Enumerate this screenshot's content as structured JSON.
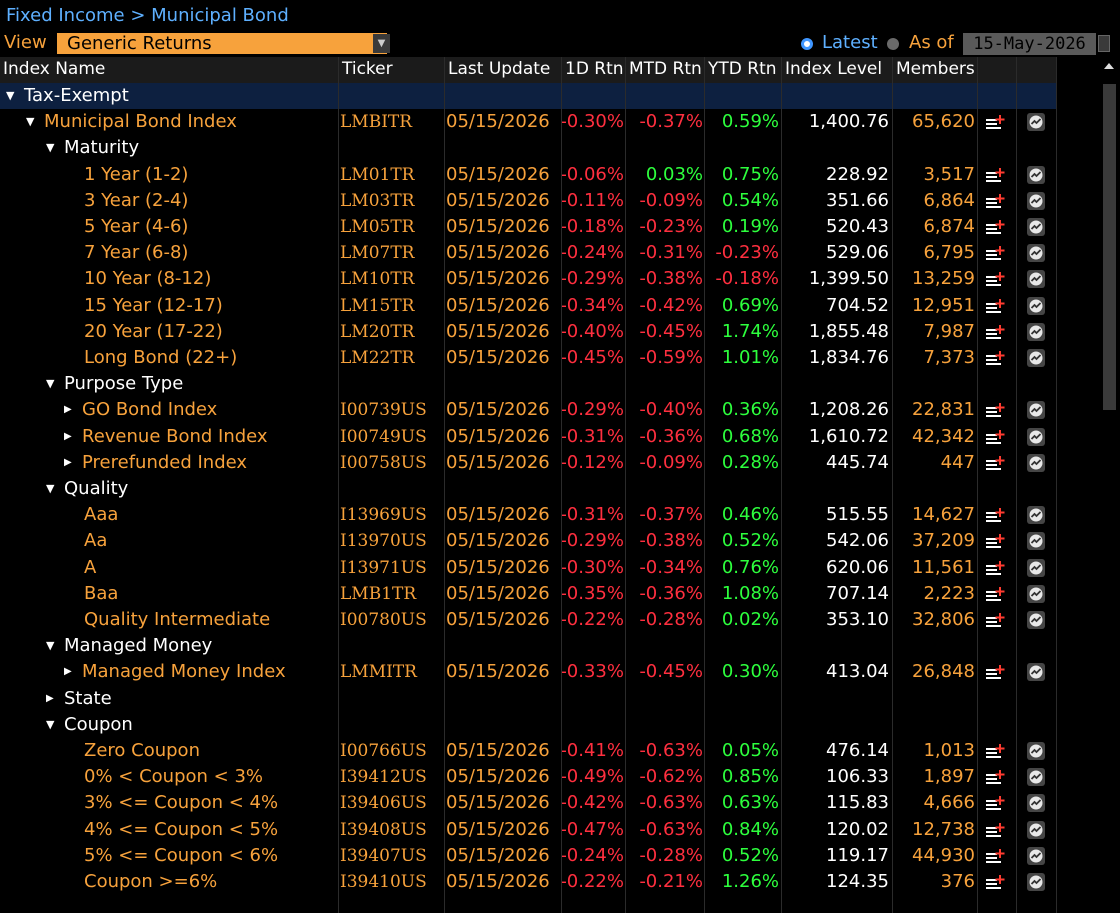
{
  "breadcrumb": "Fixed Income > Municipal Bond",
  "view": {
    "label": "View",
    "value": "Generic Returns"
  },
  "mode": {
    "latest": "Latest",
    "as_of": "As of",
    "date": "15-May-2026",
    "selected": "Latest"
  },
  "columns": [
    "Index Name",
    "Ticker",
    "Last Update",
    "1D Rtn",
    "MTD Rtn",
    "YTD Rtn",
    "Index Level",
    "Members"
  ],
  "colors": {
    "accent": "#f7a23c",
    "link": "#5eb0ff",
    "negative": "#ff2f3f",
    "positive": "#2dff3d"
  },
  "icons": {
    "add": "add-to-list-icon",
    "graph": "graph-icon",
    "expanded": "triangle-down-icon",
    "collapsed": "triangle-right-icon"
  },
  "rows": [
    {
      "kind": "group",
      "depth": 0,
      "expand": "down",
      "name": "Tax-Exempt"
    },
    {
      "kind": "data",
      "depth": 1,
      "expand": "down",
      "name": "Municipal Bond Index",
      "ticker": "LMBITR",
      "update": "05/15/2026",
      "d1": "-0.30%",
      "mtd": "-0.37%",
      "ytd": "0.59%",
      "level": "1,400.76",
      "members": "65,620"
    },
    {
      "kind": "category",
      "depth": 2,
      "expand": "down",
      "name": "Maturity"
    },
    {
      "kind": "data",
      "depth": 3,
      "name": "1 Year (1-2)",
      "ticker": "LM01TR",
      "update": "05/15/2026",
      "d1": "-0.06%",
      "mtd": "0.03%",
      "ytd": "0.75%",
      "level": "228.92",
      "members": "3,517"
    },
    {
      "kind": "data",
      "depth": 3,
      "name": "3 Year (2-4)",
      "ticker": "LM03TR",
      "update": "05/15/2026",
      "d1": "-0.11%",
      "mtd": "-0.09%",
      "ytd": "0.54%",
      "level": "351.66",
      "members": "6,864"
    },
    {
      "kind": "data",
      "depth": 3,
      "name": "5 Year (4-6)",
      "ticker": "LM05TR",
      "update": "05/15/2026",
      "d1": "-0.18%",
      "mtd": "-0.23%",
      "ytd": "0.19%",
      "level": "520.43",
      "members": "6,874"
    },
    {
      "kind": "data",
      "depth": 3,
      "name": "7 Year (6-8)",
      "ticker": "LM07TR",
      "update": "05/15/2026",
      "d1": "-0.24%",
      "mtd": "-0.31%",
      "ytd": "-0.23%",
      "level": "529.06",
      "members": "6,795"
    },
    {
      "kind": "data",
      "depth": 3,
      "name": "10 Year (8-12)",
      "ticker": "LM10TR",
      "update": "05/15/2026",
      "d1": "-0.29%",
      "mtd": "-0.38%",
      "ytd": "-0.18%",
      "level": "1,399.50",
      "members": "13,259"
    },
    {
      "kind": "data",
      "depth": 3,
      "name": "15 Year (12-17)",
      "ticker": "LM15TR",
      "update": "05/15/2026",
      "d1": "-0.34%",
      "mtd": "-0.42%",
      "ytd": "0.69%",
      "level": "704.52",
      "members": "12,951"
    },
    {
      "kind": "data",
      "depth": 3,
      "name": "20 Year (17-22)",
      "ticker": "LM20TR",
      "update": "05/15/2026",
      "d1": "-0.40%",
      "mtd": "-0.45%",
      "ytd": "1.74%",
      "level": "1,855.48",
      "members": "7,987"
    },
    {
      "kind": "data",
      "depth": 3,
      "name": "Long Bond (22+)",
      "ticker": "LM22TR",
      "update": "05/15/2026",
      "d1": "-0.45%",
      "mtd": "-0.59%",
      "ytd": "1.01%",
      "level": "1,834.76",
      "members": "7,373"
    },
    {
      "kind": "category",
      "depth": 2,
      "expand": "down",
      "name": "Purpose Type"
    },
    {
      "kind": "data",
      "depth": 3,
      "expand": "right",
      "name": "GO Bond Index",
      "ticker": "I00739US",
      "update": "05/15/2026",
      "d1": "-0.29%",
      "mtd": "-0.40%",
      "ytd": "0.36%",
      "level": "1,208.26",
      "members": "22,831"
    },
    {
      "kind": "data",
      "depth": 3,
      "expand": "right",
      "name": "Revenue Bond Index",
      "ticker": "I00749US",
      "update": "05/15/2026",
      "d1": "-0.31%",
      "mtd": "-0.36%",
      "ytd": "0.68%",
      "level": "1,610.72",
      "members": "42,342"
    },
    {
      "kind": "data",
      "depth": 3,
      "expand": "right",
      "name": "Prerefunded Index",
      "ticker": "I00758US",
      "update": "05/15/2026",
      "d1": "-0.12%",
      "mtd": "-0.09%",
      "ytd": "0.28%",
      "level": "445.74",
      "members": "447"
    },
    {
      "kind": "category",
      "depth": 2,
      "expand": "down",
      "name": "Quality"
    },
    {
      "kind": "data",
      "depth": 3,
      "name": "Aaa",
      "ticker": "I13969US",
      "update": "05/15/2026",
      "d1": "-0.31%",
      "mtd": "-0.37%",
      "ytd": "0.46%",
      "level": "515.55",
      "members": "14,627"
    },
    {
      "kind": "data",
      "depth": 3,
      "name": "Aa",
      "ticker": "I13970US",
      "update": "05/15/2026",
      "d1": "-0.29%",
      "mtd": "-0.38%",
      "ytd": "0.52%",
      "level": "542.06",
      "members": "37,209"
    },
    {
      "kind": "data",
      "depth": 3,
      "name": "A",
      "ticker": "I13971US",
      "update": "05/15/2026",
      "d1": "-0.30%",
      "mtd": "-0.34%",
      "ytd": "0.76%",
      "level": "620.06",
      "members": "11,561"
    },
    {
      "kind": "data",
      "depth": 3,
      "name": "Baa",
      "ticker": "LMB1TR",
      "update": "05/15/2026",
      "d1": "-0.35%",
      "mtd": "-0.36%",
      "ytd": "1.08%",
      "level": "707.14",
      "members": "2,223"
    },
    {
      "kind": "data",
      "depth": 3,
      "name": "Quality Intermediate",
      "ticker": "I00780US",
      "update": "05/15/2026",
      "d1": "-0.22%",
      "mtd": "-0.28%",
      "ytd": "0.02%",
      "level": "353.10",
      "members": "32,806"
    },
    {
      "kind": "category",
      "depth": 2,
      "expand": "down",
      "name": "Managed Money"
    },
    {
      "kind": "data",
      "depth": 3,
      "expand": "right",
      "name": "Managed Money Index",
      "ticker": "LMMITR",
      "update": "05/15/2026",
      "d1": "-0.33%",
      "mtd": "-0.45%",
      "ytd": "0.30%",
      "level": "413.04",
      "members": "26,848"
    },
    {
      "kind": "category",
      "depth": 2,
      "expand": "right",
      "name": "State"
    },
    {
      "kind": "category",
      "depth": 2,
      "expand": "down",
      "name": "Coupon"
    },
    {
      "kind": "data",
      "depth": 3,
      "name": "Zero Coupon",
      "ticker": "I00766US",
      "update": "05/15/2026",
      "d1": "-0.41%",
      "mtd": "-0.63%",
      "ytd": "0.05%",
      "level": "476.14",
      "members": "1,013"
    },
    {
      "kind": "data",
      "depth": 3,
      "name": "0% < Coupon < 3%",
      "ticker": "I39412US",
      "update": "05/15/2026",
      "d1": "-0.49%",
      "mtd": "-0.62%",
      "ytd": "0.85%",
      "level": "106.33",
      "members": "1,897"
    },
    {
      "kind": "data",
      "depth": 3,
      "name": "3% <= Coupon < 4%",
      "ticker": "I39406US",
      "update": "05/15/2026",
      "d1": "-0.42%",
      "mtd": "-0.63%",
      "ytd": "0.63%",
      "level": "115.83",
      "members": "4,666"
    },
    {
      "kind": "data",
      "depth": 3,
      "name": "4% <= Coupon < 5%",
      "ticker": "I39408US",
      "update": "05/15/2026",
      "d1": "-0.47%",
      "mtd": "-0.63%",
      "ytd": "0.84%",
      "level": "120.02",
      "members": "12,738"
    },
    {
      "kind": "data",
      "depth": 3,
      "name": "5% <= Coupon < 6%",
      "ticker": "I39407US",
      "update": "05/15/2026",
      "d1": "-0.24%",
      "mtd": "-0.28%",
      "ytd": "0.52%",
      "level": "119.17",
      "members": "44,930"
    },
    {
      "kind": "data",
      "depth": 3,
      "name": "Coupon >=6%",
      "ticker": "I39410US",
      "update": "05/15/2026",
      "d1": "-0.22%",
      "mtd": "-0.21%",
      "ytd": "1.26%",
      "level": "124.35",
      "members": "376"
    }
  ]
}
